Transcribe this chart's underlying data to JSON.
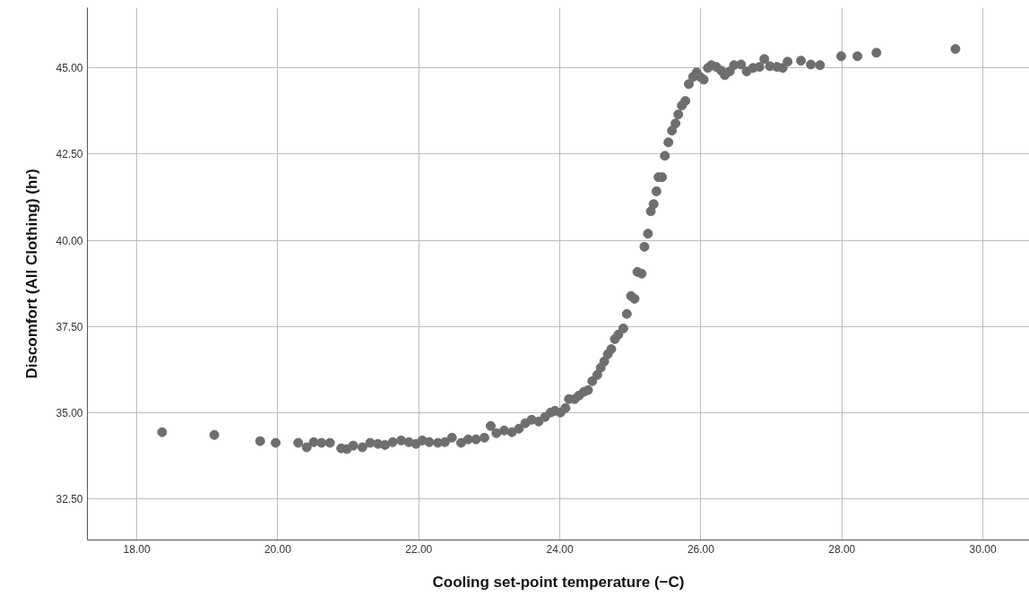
{
  "chart_data": {
    "type": "scatter",
    "xlabel": "Cooling set-point temperature (−C)",
    "ylabel": "Discomfort (All Clothing) (hr)",
    "xlim": [
      17.3,
      30.66
    ],
    "ylim": [
      31.3,
      46.75
    ],
    "xticks": [
      {
        "value": 18,
        "label": "18.00"
      },
      {
        "value": 20,
        "label": "20.00"
      },
      {
        "value": 22,
        "label": "22.00"
      },
      {
        "value": 24,
        "label": "24.00"
      },
      {
        "value": 26,
        "label": "26.00"
      },
      {
        "value": 28,
        "label": "28.00"
      },
      {
        "value": 30,
        "label": "30.00"
      }
    ],
    "yticks": [
      {
        "value": 32.5,
        "label": "32.50"
      },
      {
        "value": 35,
        "label": "35.00"
      },
      {
        "value": 37.5,
        "label": "37.50"
      },
      {
        "value": 40,
        "label": "40.00"
      },
      {
        "value": 42.5,
        "label": "42.50"
      },
      {
        "value": 45,
        "label": "45.00"
      }
    ],
    "grid": true,
    "marker": "circle",
    "series": [
      {
        "color": "#6e6e6e",
        "x": [
          18.36,
          19.1,
          19.75,
          19.97,
          20.29,
          20.41,
          20.51,
          20.62,
          20.74,
          20.9,
          20.98,
          21.07,
          21.2,
          21.31,
          21.42,
          21.52,
          21.63,
          21.75,
          21.86,
          21.96,
          22.05,
          22.15,
          22.27,
          22.37,
          22.47,
          22.6,
          22.7,
          22.81,
          22.93,
          23.02,
          23.1,
          23.21,
          23.32,
          23.42,
          23.51,
          23.6,
          23.7,
          23.79,
          23.87,
          23.93,
          24.01,
          24.08,
          24.13,
          24.21,
          24.27,
          24.34,
          24.4,
          24.46,
          24.53,
          24.58,
          24.63,
          24.68,
          24.73,
          24.78,
          24.83,
          24.9,
          24.95,
          25.01,
          25.06,
          25.1,
          25.16,
          25.2,
          25.25,
          25.29,
          25.33,
          25.37,
          25.4,
          25.45,
          25.49,
          25.54,
          25.59,
          25.64,
          25.68,
          25.73,
          25.78,
          25.83,
          25.89,
          25.94,
          25.99,
          26.04,
          26.1,
          26.15,
          26.22,
          26.29,
          26.34,
          26.41,
          26.47,
          26.57,
          26.65,
          26.74,
          26.83,
          26.9,
          26.98,
          27.08,
          27.16,
          27.23,
          27.42,
          27.56,
          27.69,
          27.99,
          28.22,
          28.49,
          29.61
        ],
        "values": [
          34.43,
          34.35,
          34.17,
          34.12,
          34.12,
          33.99,
          34.14,
          34.12,
          34.12,
          33.96,
          33.94,
          34.04,
          33.99,
          34.12,
          34.09,
          34.06,
          34.14,
          34.19,
          34.14,
          34.09,
          34.19,
          34.14,
          34.12,
          34.14,
          34.27,
          34.12,
          34.22,
          34.22,
          34.27,
          34.61,
          34.4,
          34.48,
          34.43,
          34.53,
          34.69,
          34.79,
          34.74,
          34.87,
          35.0,
          35.05,
          35.0,
          35.13,
          35.39,
          35.39,
          35.49,
          35.6,
          35.65,
          35.91,
          36.09,
          36.3,
          36.48,
          36.69,
          36.84,
          37.13,
          37.26,
          37.44,
          37.86,
          38.38,
          38.3,
          39.08,
          39.03,
          39.81,
          40.19,
          40.84,
          41.05,
          41.42,
          41.83,
          41.83,
          42.45,
          42.84,
          43.18,
          43.39,
          43.65,
          43.91,
          44.04,
          44.53,
          44.74,
          44.87,
          44.74,
          44.66,
          45.0,
          45.08,
          45.03,
          44.92,
          44.79,
          44.9,
          45.08,
          45.1,
          44.9,
          45.0,
          45.03,
          45.26,
          45.05,
          45.03,
          45.0,
          45.18,
          45.21,
          45.1,
          45.08,
          45.34,
          45.34,
          45.44,
          45.55
        ]
      }
    ]
  }
}
